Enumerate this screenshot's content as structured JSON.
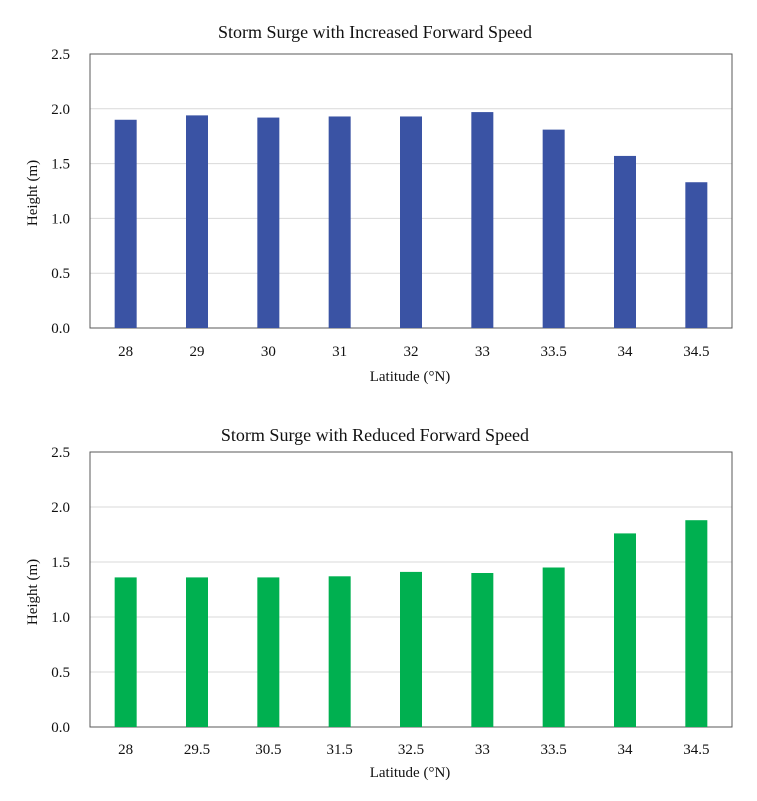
{
  "chart_data": [
    {
      "type": "bar",
      "title": "Storm Surge with Increased  Forward Speed",
      "xlabel": "Latitude (°N)",
      "ylabel": "Height (m)",
      "categories": [
        "28",
        "29",
        "30",
        "31",
        "32",
        "33",
        "33.5",
        "34",
        "34.5"
      ],
      "values": [
        1.9,
        1.94,
        1.92,
        1.93,
        1.93,
        1.97,
        1.81,
        1.57,
        1.33
      ],
      "ylim": [
        0,
        2.5
      ],
      "yticks": [
        "0.0",
        "0.5",
        "1.0",
        "1.5",
        "2.0",
        "2.5"
      ],
      "grid": true,
      "color": "#3A53A4"
    },
    {
      "type": "bar",
      "title": "Storm Surge with Reduced Forward Speed",
      "xlabel": "Latitude (°N)",
      "ylabel": "Height (m)",
      "categories": [
        "28",
        "29.5",
        "30.5",
        "31.5",
        "32.5",
        "33",
        "33.5",
        "34",
        "34.5"
      ],
      "values": [
        1.36,
        1.36,
        1.36,
        1.37,
        1.41,
        1.4,
        1.45,
        1.76,
        1.88
      ],
      "ylim": [
        0,
        2.5
      ],
      "yticks": [
        "0.0",
        "0.5",
        "1.0",
        "1.5",
        "2.0",
        "2.5"
      ],
      "grid": true,
      "color": "#00B050"
    }
  ]
}
